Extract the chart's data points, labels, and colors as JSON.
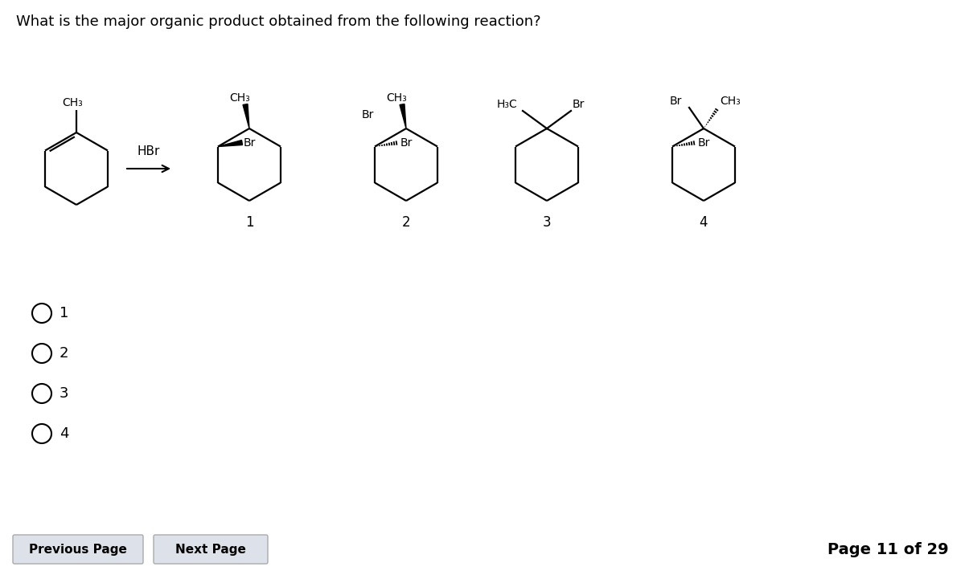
{
  "title": "What is the major organic product obtained from the following reaction?",
  "title_fontsize": 13,
  "background_color": "#ffffff",
  "page_text": "Page 11 of 29",
  "reagent": "HBr",
  "answer_choices": [
    "1",
    "2",
    "3",
    "4"
  ],
  "button_prev": "Previous Page",
  "button_next": "Next Page",
  "ring_size": 45,
  "lw": 1.6
}
